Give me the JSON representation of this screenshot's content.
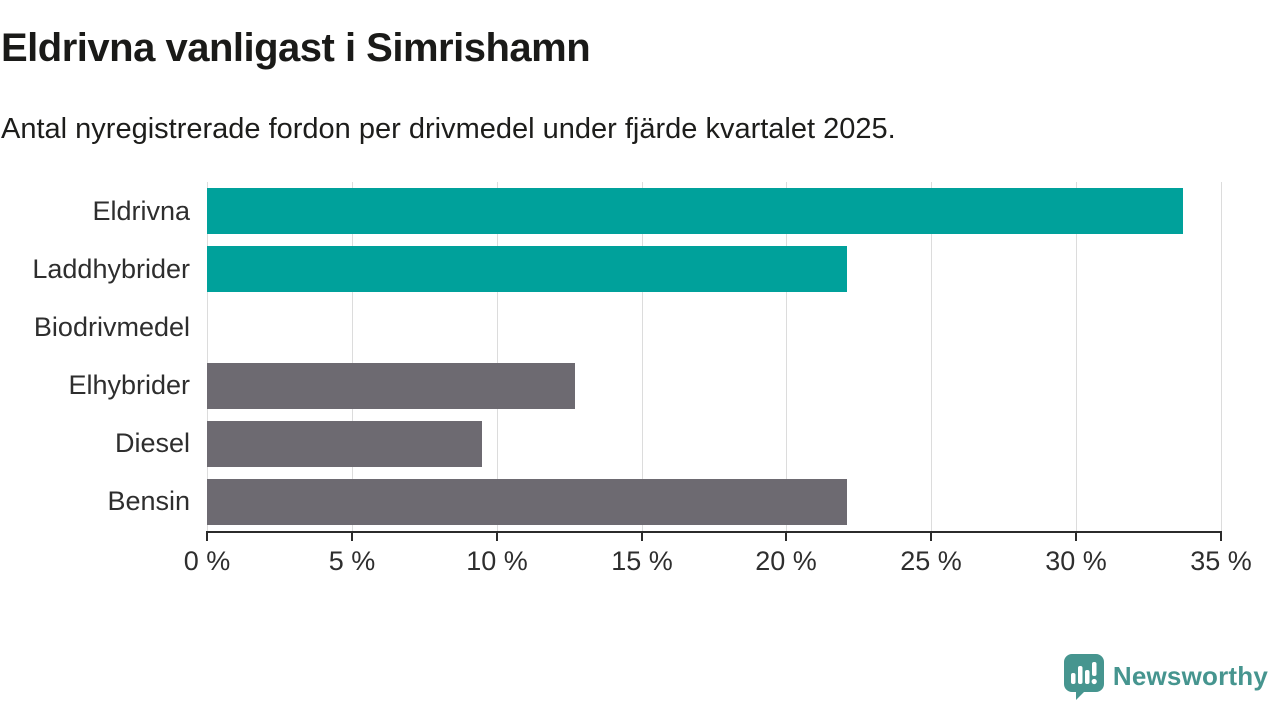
{
  "chart_data": {
    "type": "bar",
    "orientation": "horizontal",
    "title": "Eldrivna vanligast i Simrishamn",
    "subtitle": "Antal nyregistrerade fordon per drivmedel under fjärde kvartalet 2025.",
    "categories": [
      "Eldrivna",
      "Laddhybrider",
      "Biodrivmedel",
      "Elhybrider",
      "Diesel",
      "Bensin"
    ],
    "values": [
      33.7,
      22.1,
      0,
      12.7,
      9.5,
      22.1
    ],
    "unit": "%",
    "xlim": [
      0,
      35
    ],
    "x_tick_step": 5,
    "x_tick_labels": [
      "0 %",
      "5 %",
      "10 %",
      "15 %",
      "20 %",
      "25 %",
      "30 %",
      "35 %"
    ],
    "bar_colors": [
      "#00a19b",
      "#00a19b",
      "#00a19b",
      "#6d6a71",
      "#6d6a71",
      "#6d6a71"
    ],
    "highlight_color": "#00a19b",
    "default_color": "#6d6a71",
    "grid": "vertical",
    "legend": "none"
  },
  "footer": {
    "brand": "Newsworthy",
    "brand_color": "#46958f"
  }
}
